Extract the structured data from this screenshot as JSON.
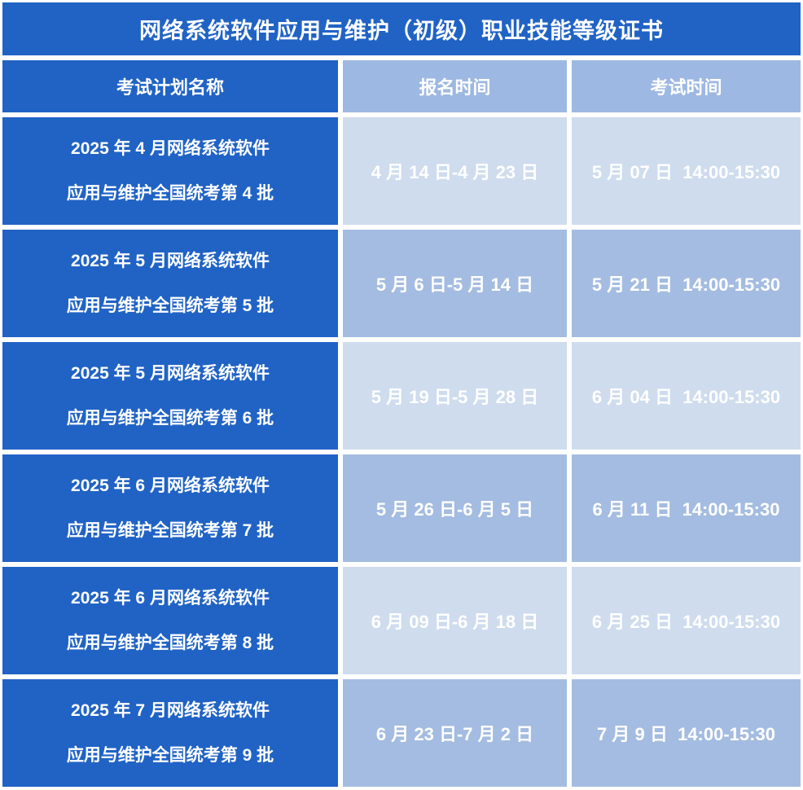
{
  "title": "网络系统软件应用与维护（初级）职业技能等级证书",
  "columns": {
    "name": "考试计划名称",
    "registration": "报名时间",
    "exam": "考试时间"
  },
  "rows": [
    {
      "name_line1": "2025 年 4 月网络系统软件",
      "name_line2": "应用与维护全国统考第 4 批",
      "registration": "4 月 14 日-4 月 23 日",
      "exam": "5 月 07 日  14:00-15:30"
    },
    {
      "name_line1": "2025 年 5 月网络系统软件",
      "name_line2": "应用与维护全国统考第 5 批",
      "registration": "5 月 6 日-5 月 14 日",
      "exam": "5 月 21 日  14:00-15:30"
    },
    {
      "name_line1": "2025 年 5 月网络系统软件",
      "name_line2": "应用与维护全国统考第 6 批",
      "registration": "5 月 19 日-5 月 28 日",
      "exam": "6 月 04 日  14:00-15:30"
    },
    {
      "name_line1": "2025 年 6 月网络系统软件",
      "name_line2": "应用与维护全国统考第 7 批",
      "registration": "5 月 26 日-6 月 5 日",
      "exam": "6 月 11 日  14:00-15:30"
    },
    {
      "name_line1": "2025 年 6 月网络系统软件",
      "name_line2": "应用与维护全国统考第 8 批",
      "registration": "6 月 09 日-6 月 18 日",
      "exam": "6 月 25 日  14:00-15:30"
    },
    {
      "name_line1": "2025 年 7 月网络系统软件",
      "name_line2": "应用与维护全国统考第 9 批",
      "registration": "6 月 23 日-7 月 2 日",
      "exam": "7 月 9 日  14:00-15:30"
    }
  ],
  "colors": {
    "primary_blue": "#2063c5",
    "header_time_blue": "#9db8e2",
    "row_light_blue": "#cfdcee",
    "row_mid_blue": "#a4bce1",
    "text_white": "#ffffff",
    "grid_gap_white": "#ffffff"
  }
}
